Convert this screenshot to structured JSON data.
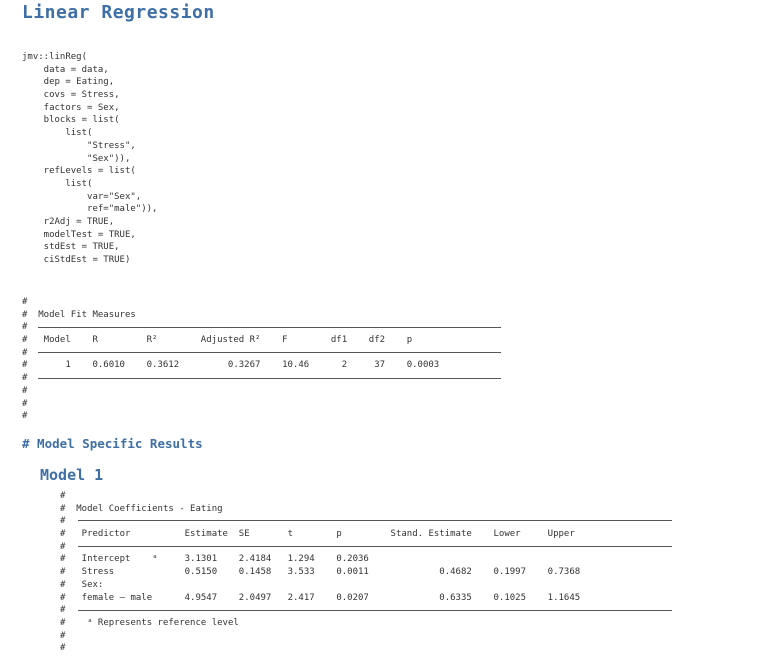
{
  "heading": "Linear Regression",
  "code_lines": [
    "jmv::linReg(",
    "    data = data,",
    "    dep = Eating,",
    "    covs = Stress,",
    "    factors = Sex,",
    "    blocks = list(",
    "        list(",
    "            \"Stress\",",
    "            \"Sex\")),",
    "    refLevels = list(",
    "        list(",
    "            var=\"Sex\",",
    "            ref=\"male\")),",
    "    r2Adj = TRUE,",
    "    modelTest = TRUE,",
    "    stdEst = TRUE,",
    "    ciStdEst = TRUE)"
  ],
  "model_fit": {
    "hash_lines": [
      "#",
      "#  Model Fit Measures",
      "#",
      "#   Model    R         R²        Adjusted R²    F        df1    df2    p",
      "#",
      "#       1    0.6010    0.3612         0.3267    10.46      2     37    0.0003",
      "#",
      "#",
      "#",
      "#"
    ],
    "title": "Model Fit Measures",
    "columns": [
      "Model",
      "R",
      "R²",
      "Adjusted R²",
      "F",
      "df1",
      "df2",
      "p"
    ],
    "rows": [
      [
        "1",
        "0.6010",
        "0.3612",
        "0.3267",
        "10.46",
        "2",
        "37",
        "0.0003"
      ]
    ]
  },
  "model_specific_heading": "# Model Specific Results",
  "model_heading": "Model 1",
  "coefficients": {
    "title": "Model Coefficients - Eating",
    "columns": [
      "Predictor",
      "Estimate",
      "SE",
      "t",
      "p",
      "Stand. Estimate",
      "Lower",
      "Upper"
    ],
    "rows": [
      [
        "Intercept    ᵃ",
        "3.1301",
        "2.4184",
        "1.294",
        "0.2036",
        "",
        "",
        ""
      ],
      [
        "Stress",
        "0.5150",
        "0.1458",
        "3.533",
        "0.0011",
        "0.4682",
        "0.1997",
        "0.7368"
      ],
      [
        "Sex:",
        "",
        "",
        "",
        "",
        "",
        "",
        ""
      ],
      [
        "female – male",
        "4.9547",
        "2.0497",
        "2.417",
        "0.0207",
        "0.6335",
        "0.1025",
        "1.1645"
      ]
    ],
    "footnote": "ᵃ Represents reference level"
  }
}
